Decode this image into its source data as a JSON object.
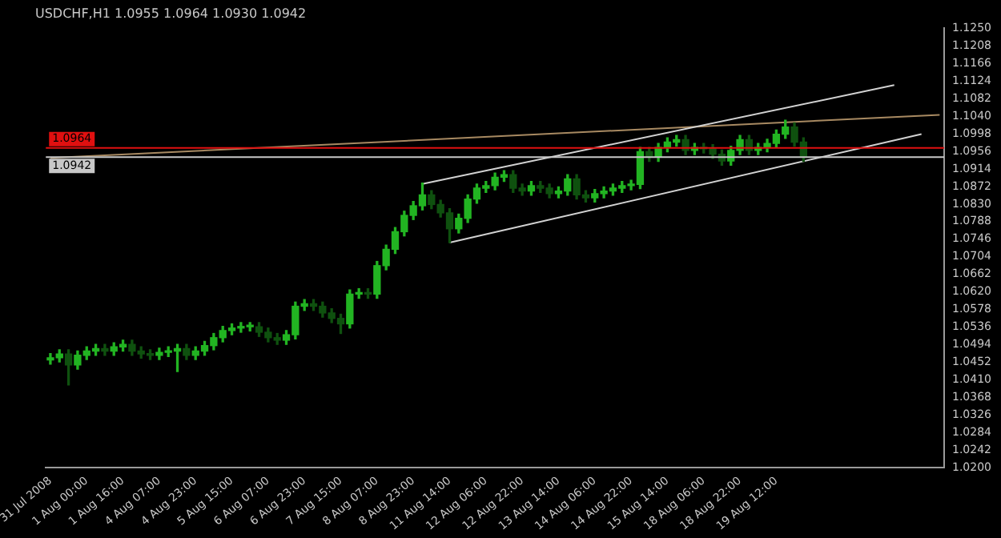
{
  "chart_data": {
    "type": "candlestick",
    "title": "USDCHF,H1 1.0955 1.0964 1.0930 1.0942",
    "colors": [
      "#22b422",
      "#22b422",
      "#0f510f",
      "#22b422",
      "#22b422",
      "#22b422",
      "#0f510f",
      "#22b422",
      "#22b422",
      "#0f510f",
      "#0f510f",
      "#0f510f",
      "#22b422",
      "#22b422",
      "#22b422",
      "#0f510f",
      "#22b422",
      "#22b422",
      "#22b422",
      "#22b422",
      "#22b422",
      "#22b422",
      "#22b422",
      "#0f510f",
      "#0f510f",
      "#0f510f",
      "#22b422",
      "#22b422",
      "#22b422",
      "#0f510f",
      "#0f510f",
      "#0f510f",
      "#0f510f",
      "#22b422",
      "#22b422",
      "#0f510f",
      "#22b422",
      "#22b422",
      "#22b422",
      "#22b422",
      "#22b422",
      "#22b422",
      "#0f510f",
      "#0f510f",
      "#0f510f",
      "#22b422",
      "#22b422",
      "#22b422",
      "#22b422",
      "#22b422",
      "#22b422",
      "#0f510f",
      "#0f510f",
      "#22b422",
      "#0f510f",
      "#0f510f",
      "#22b422",
      "#22b422",
      "#0f510f",
      "#0f510f",
      "#22b422",
      "#22b422",
      "#22b422",
      "#22b422",
      "#22b422",
      "#22b422",
      "#0f510f",
      "#22b422",
      "#22b422",
      "#22b422",
      "#0f510f",
      "#22b422",
      "#0f510f",
      "#0f510f",
      "#0f510f",
      "#22b422",
      "#22b422",
      "#0f510f",
      "#22b422",
      "#22b422",
      "#22b422",
      "#22b422",
      "#0f510f",
      "#0f510f",
      null,
      null,
      null,
      null,
      null,
      null,
      null,
      null,
      null,
      null,
      null,
      null,
      null,
      null,
      null
    ],
    "legend": false,
    "grid": false,
    "categories": [
      "31 Jul 2008",
      null,
      null,
      null,
      "1 Aug 00:00",
      null,
      null,
      null,
      "1 Aug 16:00",
      null,
      null,
      null,
      "4 Aug 07:00",
      null,
      null,
      null,
      "4 Aug 23:00",
      null,
      null,
      null,
      "5 Aug 15:00",
      null,
      null,
      null,
      "6 Aug 07:00",
      null,
      null,
      null,
      "6 Aug 23:00",
      null,
      null,
      null,
      "7 Aug 15:00",
      null,
      null,
      null,
      "8 Aug 07:00",
      null,
      null,
      null,
      "8 Aug 23:00",
      null,
      null,
      null,
      "11 Aug 14:00",
      null,
      null,
      null,
      "12 Aug 06:00",
      null,
      null,
      null,
      "12 Aug 22:00",
      null,
      null,
      null,
      "13 Aug 14:00",
      null,
      null,
      null,
      "14 Aug 06:00",
      null,
      null,
      null,
      "14 Aug 22:00",
      null,
      null,
      null,
      "15 Aug 14:00",
      null,
      null,
      null,
      "18 Aug 06:00",
      null,
      null,
      null,
      "18 Aug 22:00",
      null,
      null,
      null,
      "19 Aug 12:00",
      null,
      null,
      null,
      null,
      null,
      null,
      null,
      null,
      null,
      null,
      null,
      null,
      null,
      null,
      null,
      null,
      null,
      null
    ],
    "ohlc": [
      [
        1.0458,
        1.0473,
        1.0448,
        1.0463
      ],
      [
        1.0463,
        1.0482,
        1.0453,
        1.0472
      ],
      [
        1.0472,
        1.0482,
        1.0398,
        1.0446
      ],
      [
        1.0446,
        1.0479,
        1.0436,
        1.0469
      ],
      [
        1.0469,
        1.0489,
        1.0459,
        1.0479
      ],
      [
        1.0479,
        1.0495,
        1.0469,
        1.0485
      ],
      [
        1.0485,
        1.0495,
        1.0469,
        1.0479
      ],
      [
        1.0479,
        1.0499,
        1.0469,
        1.0489
      ],
      [
        1.0489,
        1.0505,
        1.0479,
        1.0495
      ],
      [
        1.0495,
        1.0505,
        1.0469,
        1.0479
      ],
      [
        1.0479,
        1.0489,
        1.0462,
        1.0472
      ],
      [
        1.0472,
        1.0482,
        1.0459,
        1.0469
      ],
      [
        1.0469,
        1.0486,
        1.0459,
        1.0476
      ],
      [
        1.0476,
        1.0489,
        1.0466,
        1.0479
      ],
      [
        1.0479,
        1.0495,
        1.043,
        1.0485
      ],
      [
        1.0485,
        1.0495,
        1.0459,
        1.0469
      ],
      [
        1.0469,
        1.0489,
        1.0459,
        1.0479
      ],
      [
        1.0479,
        1.0502,
        1.0469,
        1.0492
      ],
      [
        1.0492,
        1.0521,
        1.0482,
        1.0511
      ],
      [
        1.0511,
        1.0538,
        1.0501,
        1.0528
      ],
      [
        1.0528,
        1.0544,
        1.0518,
        1.0534
      ],
      [
        1.0534,
        1.0547,
        1.0524,
        1.0537
      ],
      [
        1.0537,
        1.0547,
        1.0527,
        1.0537
      ],
      [
        1.0537,
        1.0547,
        1.0514,
        1.0524
      ],
      [
        1.0524,
        1.0534,
        1.0501,
        1.0511
      ],
      [
        1.0511,
        1.0521,
        1.0495,
        1.0505
      ],
      [
        1.0505,
        1.0528,
        1.0495,
        1.0518
      ],
      [
        1.0518,
        1.0596,
        1.0508,
        1.0586
      ],
      [
        1.0586,
        1.0602,
        1.0576,
        1.0592
      ],
      [
        1.0592,
        1.0602,
        1.0576,
        1.0586
      ],
      [
        1.0586,
        1.0596,
        1.056,
        1.057
      ],
      [
        1.057,
        1.058,
        1.0547,
        1.0557
      ],
      [
        1.0557,
        1.0567,
        1.0521,
        1.0544
      ],
      [
        1.0544,
        1.0625,
        1.0534,
        1.0615
      ],
      [
        1.0615,
        1.0628,
        1.0605,
        1.0618
      ],
      [
        1.0618,
        1.0628,
        1.0605,
        1.0615
      ],
      [
        1.0615,
        1.0693,
        1.0605,
        1.0683
      ],
      [
        1.0683,
        1.0732,
        1.0673,
        1.0722
      ],
      [
        1.0722,
        1.0774,
        1.0712,
        1.0764
      ],
      [
        1.0764,
        1.0813,
        1.0754,
        1.0803
      ],
      [
        1.0803,
        1.0836,
        1.0793,
        1.0826
      ],
      [
        1.0826,
        1.088,
        1.0816,
        1.0852
      ],
      [
        1.0852,
        1.0862,
        1.0819,
        1.0829
      ],
      [
        1.0829,
        1.0839,
        1.0799,
        1.0809
      ],
      [
        1.0809,
        1.0819,
        1.0738,
        1.0771
      ],
      [
        1.0771,
        1.0806,
        1.0761,
        1.0796
      ],
      [
        1.0796,
        1.0852,
        1.0786,
        1.0842
      ],
      [
        1.0842,
        1.0878,
        1.0832,
        1.0868
      ],
      [
        1.0868,
        1.0884,
        1.0858,
        1.0874
      ],
      [
        1.0874,
        1.0904,
        1.0864,
        1.0894
      ],
      [
        1.0894,
        1.091,
        1.0884,
        1.09
      ],
      [
        1.09,
        1.091,
        1.0858,
        1.0868
      ],
      [
        1.0868,
        1.0878,
        1.0851,
        1.0861
      ],
      [
        1.0861,
        1.0884,
        1.0851,
        1.0874
      ],
      [
        1.0874,
        1.0884,
        1.0858,
        1.0868
      ],
      [
        1.0868,
        1.0878,
        1.0845,
        1.0855
      ],
      [
        1.0855,
        1.0871,
        1.0845,
        1.0861
      ],
      [
        1.0861,
        1.09,
        1.0851,
        1.089
      ],
      [
        1.089,
        1.09,
        1.0842,
        1.0852
      ],
      [
        1.0852,
        1.0862,
        1.0835,
        1.0845
      ],
      [
        1.0845,
        1.0865,
        1.0835,
        1.0855
      ],
      [
        1.0855,
        1.0871,
        1.0845,
        1.0861
      ],
      [
        1.0861,
        1.0878,
        1.0851,
        1.0868
      ],
      [
        1.0868,
        1.0884,
        1.0858,
        1.0874
      ],
      [
        1.0874,
        1.0887,
        1.0864,
        1.0877
      ],
      [
        1.0877,
        1.0965,
        1.0867,
        1.0955
      ],
      [
        1.0955,
        1.0965,
        1.0932,
        1.0942
      ],
      [
        1.0942,
        1.0975,
        1.0932,
        1.0965
      ],
      [
        1.0965,
        1.0988,
        1.0955,
        1.0978
      ],
      [
        1.0978,
        1.0994,
        1.0968,
        1.0984
      ],
      [
        1.0984,
        1.0994,
        1.0948,
        1.0958
      ],
      [
        1.0958,
        1.0975,
        1.0948,
        1.0965
      ],
      [
        1.0965,
        1.0975,
        1.0952,
        1.0962
      ],
      [
        1.0962,
        1.0972,
        1.0939,
        1.0949
      ],
      [
        1.0949,
        1.0959,
        1.0923,
        1.0933
      ],
      [
        1.0933,
        1.0968,
        1.0923,
        1.0958
      ],
      [
        1.0958,
        1.0994,
        1.0948,
        1.0984
      ],
      [
        1.0984,
        1.0994,
        1.0948,
        1.0958
      ],
      [
        1.0958,
        1.0975,
        1.0948,
        1.0965
      ],
      [
        1.0965,
        1.0985,
        1.0955,
        1.0975
      ],
      [
        1.0975,
        1.1007,
        1.0965,
        1.0997
      ],
      [
        1.0997,
        1.103,
        1.0987,
        1.1014
      ],
      [
        1.1014,
        1.1024,
        1.0968,
        1.0978
      ],
      [
        1.0978,
        1.0988,
        1.0932,
        1.0942
      ],
      null,
      null,
      null,
      null,
      null,
      null,
      null,
      null,
      null,
      null,
      null,
      null,
      null,
      null,
      null
    ],
    "series": [
      {
        "type": "line",
        "color": "#d2d2d2",
        "values": [
          null,
          null,
          null,
          null,
          null,
          null,
          null,
          null,
          null,
          null,
          null,
          null,
          null,
          null,
          null,
          null,
          null,
          null,
          null,
          null,
          null,
          null,
          null,
          null,
          null,
          null,
          null,
          null,
          null,
          null,
          null,
          null,
          null,
          null,
          null,
          null,
          null,
          null,
          null,
          null,
          null,
          1.0878,
          null,
          null,
          null,
          null,
          null,
          null,
          null,
          null,
          null,
          null,
          null,
          null,
          null,
          null,
          null,
          null,
          null,
          null,
          null,
          null,
          null,
          null,
          null,
          null,
          null,
          null,
          null,
          null,
          null,
          null,
          null,
          null,
          null,
          null,
          null,
          null,
          null,
          null,
          null,
          null,
          null,
          null,
          null,
          null,
          null,
          null,
          null,
          null,
          null,
          null,
          null,
          1.1114,
          null,
          null,
          null,
          null,
          null
        ]
      },
      {
        "type": "line",
        "color": "#d2d2d2",
        "values": [
          null,
          null,
          null,
          null,
          null,
          null,
          null,
          null,
          null,
          null,
          null,
          null,
          null,
          null,
          null,
          null,
          null,
          null,
          null,
          null,
          null,
          null,
          null,
          null,
          null,
          null,
          null,
          null,
          null,
          null,
          null,
          null,
          null,
          null,
          null,
          null,
          null,
          null,
          null,
          null,
          null,
          null,
          null,
          null,
          1.0738,
          null,
          null,
          null,
          null,
          null,
          null,
          null,
          null,
          null,
          null,
          null,
          null,
          null,
          null,
          null,
          null,
          null,
          null,
          null,
          null,
          null,
          null,
          null,
          null,
          null,
          null,
          null,
          null,
          null,
          null,
          null,
          null,
          null,
          null,
          null,
          null,
          null,
          null,
          null,
          null,
          null,
          null,
          null,
          null,
          null,
          null,
          null,
          null,
          null,
          null,
          null,
          1.0997,
          null,
          null
        ]
      },
      {
        "type": "line",
        "color": "#a88a62",
        "values": [
          1.094,
          null,
          null,
          null,
          null,
          null,
          null,
          null,
          null,
          null,
          null,
          null,
          null,
          null,
          null,
          null,
          null,
          null,
          null,
          null,
          null,
          null,
          null,
          null,
          null,
          null,
          null,
          null,
          null,
          null,
          null,
          null,
          null,
          null,
          null,
          null,
          null,
          null,
          null,
          null,
          null,
          null,
          null,
          null,
          null,
          null,
          null,
          null,
          null,
          null,
          null,
          null,
          null,
          null,
          null,
          null,
          null,
          null,
          null,
          null,
          null,
          null,
          null,
          null,
          null,
          null,
          null,
          null,
          null,
          null,
          null,
          null,
          null,
          null,
          null,
          null,
          null,
          null,
          null,
          null,
          null,
          null,
          null,
          null,
          null,
          null,
          null,
          null,
          null,
          null,
          null,
          null,
          null,
          null,
          null,
          null,
          null,
          null,
          1.1043
        ]
      }
    ],
    "ylim": [
      1.02,
      1.125
    ],
    "yticks": [
      {
        "value": 1.02,
        "label": "1.0200"
      },
      1.0242,
      1.0284,
      1.0326,
      1.0368,
      {
        "value": 1.041,
        "label": "1.0410"
      },
      1.0452,
      1.0494,
      1.0536,
      1.0578,
      {
        "value": 1.062,
        "label": "1.0620"
      },
      1.0662,
      1.0704,
      1.0746,
      1.0788,
      {
        "value": 1.083,
        "label": "1.0830"
      },
      1.0872,
      1.0914,
      1.0956,
      1.0998,
      {
        "value": 1.104,
        "label": "1.1040"
      },
      1.1082,
      1.1124,
      1.1166,
      1.1208,
      {
        "value": 1.125,
        "label": "1.1250"
      }
    ],
    "ref_lines": [
      {
        "axis": "y",
        "value": 1.0964,
        "label": "1.0964",
        "color": "#e01010"
      },
      {
        "axis": "y",
        "value": 1.0942,
        "label": "1.0942",
        "color": "#c8c8c8"
      }
    ]
  }
}
